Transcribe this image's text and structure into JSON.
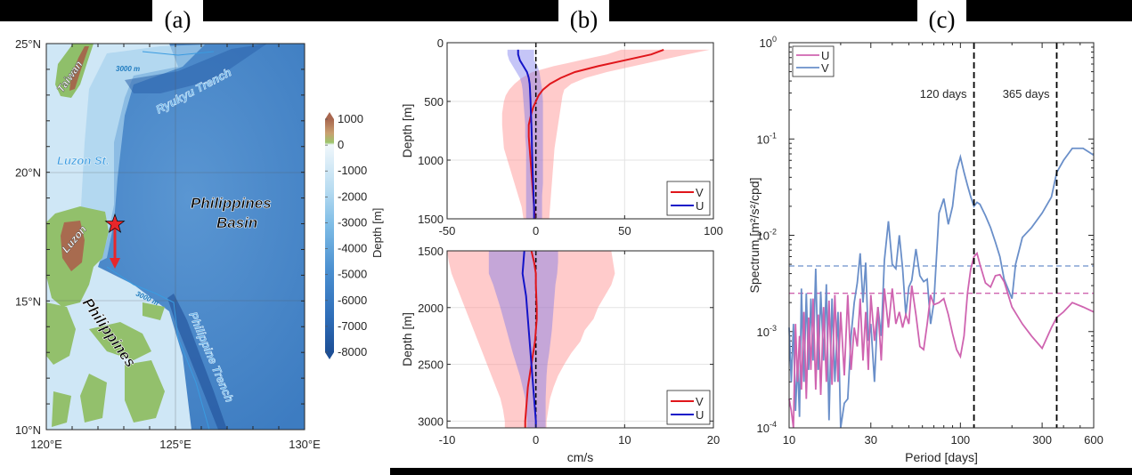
{
  "panels": {
    "a": {
      "title": "(a)"
    },
    "b": {
      "title": "(b)"
    },
    "c": {
      "title": "(c)"
    }
  },
  "chart_data": [
    {
      "panel": "(a)",
      "type": "heatmap",
      "title": "",
      "description": "Bathymetry/topography map of the western Pacific off the Philippines with mooring site (star) and arrow",
      "x_ticks": [
        "120°E",
        "125°E",
        "130°E"
      ],
      "y_ticks": [
        "25°N",
        "20°N",
        "15°N",
        "10°N"
      ],
      "xlim": [
        120,
        130
      ],
      "ylim": [
        10,
        25
      ],
      "colorbar": {
        "label": "Depth [m]",
        "ticks": [
          "1000",
          "0",
          "-1000",
          "-2000",
          "-3000",
          "-4000",
          "-5000",
          "-6000",
          "-7000",
          "-8000"
        ],
        "range": [
          -8000,
          1000
        ]
      },
      "annotations": [
        {
          "text": "Taiwan",
          "lon": 120.9,
          "lat": 23.8
        },
        {
          "text": "3000 m",
          "lon": 122.2,
          "lat": 24.5
        },
        {
          "text": "Ryukyu Trench",
          "lon": 126.2,
          "lat": 23.6
        },
        {
          "text": "Luzon St.",
          "lon": 121.1,
          "lat": 20.4
        },
        {
          "text": "Philippines Basin",
          "lon": 127.3,
          "lat": 17.9
        },
        {
          "text": "Luzon",
          "lon": 121.5,
          "lat": 17.6
        },
        {
          "text": "3000 m",
          "lon": 124.0,
          "lat": 15.3
        },
        {
          "text": "Philippines",
          "lon": 122.5,
          "lat": 13.5
        },
        {
          "text": "Philippine Trench",
          "lon": 127.0,
          "lat": 12.3
        }
      ],
      "mooring": {
        "lon": 122.75,
        "lat": 18.1,
        "marker": "red star"
      },
      "arrow": {
        "lon": 122.75,
        "lat_from": 18.1,
        "lat_to": 16.1,
        "color": "#e8262a"
      }
    },
    {
      "panel": "(b) upper",
      "type": "line",
      "xlabel": "",
      "ylabel": "Depth [m]",
      "xlim": [
        -50,
        100
      ],
      "ylim": [
        1500,
        0
      ],
      "x_ticks": [
        "-50",
        "0",
        "50",
        "100"
      ],
      "y_ticks": [
        "0",
        "500",
        "1000",
        "1500"
      ],
      "grid": true,
      "legend": {
        "position": "bottom-right",
        "entries": [
          "V",
          "U"
        ]
      },
      "series": [
        {
          "name": "V",
          "color": "#e0161b",
          "depth": [
            60,
            100,
            150,
            200,
            250,
            300,
            350,
            400,
            450,
            500,
            550,
            600,
            700,
            800,
            900,
            1000,
            1100,
            1200,
            1300,
            1400,
            1500
          ],
          "mean": [
            72,
            65,
            50,
            35,
            22,
            14,
            8,
            4,
            1.5,
            0,
            -1.5,
            -2.5,
            -4,
            -4,
            -3.5,
            -3,
            -2.5,
            -2,
            -1.5,
            -1,
            -0.5
          ],
          "lower": [
            48,
            40,
            25,
            10,
            -2,
            -8,
            -12,
            -15,
            -17,
            -18,
            -18.5,
            -19,
            -19,
            -18.5,
            -18,
            -16,
            -14,
            -12,
            -10,
            -8,
            -7
          ],
          "upper": [
            98,
            85,
            70,
            55,
            40,
            28,
            20,
            16,
            15,
            14.5,
            14,
            13.5,
            12.5,
            11.5,
            10.5,
            10,
            9.5,
            9,
            8.5,
            8,
            7.5
          ]
        },
        {
          "name": "U",
          "color": "#1414c8",
          "depth": [
            60,
            100,
            150,
            200,
            250,
            300,
            350,
            400,
            500,
            600,
            700,
            800,
            900,
            1000,
            1100,
            1200,
            1300,
            1400,
            1500
          ],
          "mean": [
            -10,
            -10,
            -9,
            -7,
            -5,
            -4,
            -3.5,
            -3.3,
            -3,
            -2.8,
            -2.5,
            -2.3,
            -2.2,
            -2,
            -1.8,
            -1.5,
            -1.3,
            -1,
            -1
          ],
          "lower": [
            -16,
            -16,
            -15,
            -13,
            -11,
            -9,
            -8,
            -7.5,
            -7,
            -6.5,
            -6,
            -6,
            -5.5,
            -5.5,
            -5.5,
            -5.5,
            -5.5,
            -5.5,
            -5.5
          ],
          "upper": [
            -1,
            -1,
            -1,
            1,
            2,
            2.5,
            3,
            3.5,
            4,
            4,
            4,
            4,
            4,
            4,
            4,
            4,
            3.5,
            3.5,
            3.5
          ]
        }
      ],
      "reference_line": {
        "x": 0,
        "style": "dashed",
        "color": "#000000"
      }
    },
    {
      "panel": "(b) lower",
      "type": "line",
      "xlabel": "cm/s",
      "ylabel": "Depth [m]",
      "xlim": [
        -10,
        20
      ],
      "ylim": [
        3060,
        1500
      ],
      "x_ticks": [
        "-10",
        "0",
        "10",
        "20"
      ],
      "y_ticks": [
        "1500",
        "2000",
        "2500",
        "3000"
      ],
      "grid": true,
      "legend": {
        "position": "bottom-right",
        "entries": [
          "V",
          "U"
        ]
      },
      "series": [
        {
          "name": "V",
          "color": "#e0161b",
          "depth": [
            1500,
            1600,
            1700,
            1800,
            2000,
            2100,
            2200,
            2300,
            2400,
            2500,
            2600,
            2700,
            2800,
            2900,
            3000,
            3060
          ],
          "mean": [
            -0.5,
            -0.2,
            0,
            0,
            0.1,
            0.1,
            0,
            -0.1,
            -0.3,
            -0.5,
            -0.7,
            -0.9,
            -1.0,
            -1.1,
            -1.2,
            -1.2
          ],
          "lower": [
            -10,
            -9.8,
            -9.5,
            -9,
            -8,
            -7.5,
            -7,
            -6.5,
            -6,
            -5.5,
            -5,
            -4.5,
            -4,
            -3.7,
            -3.5,
            -3.5
          ],
          "upper": [
            8.5,
            8.7,
            8.9,
            8.5,
            7,
            6.5,
            5.5,
            5,
            4,
            3.2,
            2.5,
            2,
            1.6,
            1.4,
            1.2,
            1.2
          ]
        },
        {
          "name": "U",
          "color": "#1414c8",
          "depth": [
            1500,
            1600,
            1700,
            1800,
            1900,
            2000,
            2200,
            2400,
            2500,
            2600,
            2800,
            3000,
            3060
          ],
          "mean": [
            -1.3,
            -1.4,
            -1.5,
            -1.3,
            -1.1,
            -1.0,
            -0.8,
            -0.6,
            -0.5,
            -0.4,
            -0.2,
            0,
            0
          ],
          "lower": [
            -5.3,
            -5.3,
            -5.3,
            -4.8,
            -4.4,
            -4,
            -3.3,
            -2.6,
            -2.2,
            -1.8,
            -1.2,
            -1,
            -1
          ],
          "upper": [
            2.5,
            2.5,
            2.4,
            2.2,
            2.1,
            2,
            1.8,
            1.5,
            1.3,
            1.2,
            1.1,
            1.1,
            1.1
          ]
        }
      ],
      "reference_line": {
        "x": 0,
        "style": "dashed",
        "color": "#000000"
      }
    },
    {
      "panel": "(c)",
      "type": "line",
      "xlabel": "Period [days]",
      "ylabel": "Spectrum [m²/s²/cpd]",
      "x_scale": "log",
      "y_scale": "log",
      "xlim": [
        10,
        600
      ],
      "ylim": [
        0.0001,
        1
      ],
      "x_ticks": [
        "10",
        "30",
        "100",
        "300",
        "600"
      ],
      "y_ticks": [
        "10^0",
        "10^-1",
        "10^-2",
        "10^-3",
        "10^-4"
      ],
      "legend": {
        "position": "top-left",
        "entries": [
          "U",
          "V"
        ]
      },
      "annotations": [
        {
          "text": "120 days",
          "x": 120
        },
        {
          "text": "365 days",
          "x": 365
        }
      ],
      "vlines": [
        120,
        365
      ],
      "hlines": [
        {
          "series": "V",
          "value": 0.0048,
          "style": "dashed"
        },
        {
          "series": "U",
          "value": 0.0025,
          "style": "dashed"
        }
      ],
      "series": [
        {
          "name": "U",
          "color": "#cf64b0",
          "x": [
            10,
            10.3,
            10.6,
            10.9,
            11.2,
            11.5,
            11.8,
            12.2,
            12.6,
            13,
            13.4,
            13.8,
            14.3,
            14.8,
            15.3,
            15.9,
            16.5,
            17.1,
            17.8,
            18.5,
            19.3,
            20,
            21,
            22,
            23,
            24,
            25,
            26,
            27,
            28,
            29,
            30,
            31.5,
            33,
            34.5,
            36,
            38,
            40,
            42,
            44,
            46,
            48,
            50,
            52,
            55,
            58,
            61,
            64,
            67,
            70,
            75,
            80,
            85,
            90,
            95,
            100,
            105,
            110,
            115,
            120,
            125,
            130,
            140,
            150,
            160,
            170,
            180,
            200,
            230,
            260,
            300,
            340,
            365,
            400,
            450,
            520,
            600
          ],
          "y": [
            0.0002,
            0.00015,
            0.0001,
            0.0012,
            0.0003,
            0.0009,
            0.00025,
            0.0016,
            0.0002,
            0.0014,
            0.0004,
            0.0022,
            0.00025,
            0.0015,
            0.00022,
            0.0018,
            0.0003,
            0.0021,
            0.00028,
            0.0024,
            0.0003,
            0.0016,
            0.00035,
            0.0024,
            0.0004,
            0.0011,
            0.0007,
            0.0022,
            0.0005,
            0.0016,
            0.0004,
            0.0024,
            0.0008,
            0.0018,
            0.0005,
            0.0028,
            0.0011,
            0.0028,
            0.0012,
            0.0016,
            0.0011,
            0.0015,
            0.0012,
            0.003,
            0.0015,
            0.0007,
            0.00065,
            0.0012,
            0.0024,
            0.0019,
            0.002,
            0.0022,
            0.0015,
            0.00095,
            0.00065,
            0.00055,
            0.0009,
            0.0025,
            0.0045,
            0.006,
            0.0065,
            0.005,
            0.0032,
            0.0029,
            0.0038,
            0.0039,
            0.0033,
            0.0018,
            0.0012,
            0.0009,
            0.00067,
            0.0011,
            0.0014,
            0.0016,
            0.002,
            0.0018,
            0.0016
          ]
        },
        {
          "name": "V",
          "color": "#6a8fc9",
          "x": [
            10,
            10.3,
            10.6,
            10.9,
            11.2,
            11.5,
            11.8,
            12.2,
            12.6,
            13,
            13.4,
            13.8,
            14.3,
            14.8,
            15.3,
            15.9,
            16.5,
            17.1,
            17.8,
            18.5,
            19.3,
            20,
            21,
            22,
            23,
            24,
            25,
            26,
            27,
            28,
            29,
            30,
            31.5,
            33,
            34.5,
            36,
            38,
            40,
            42,
            44,
            46,
            48,
            50,
            52,
            55,
            58,
            61,
            64,
            67,
            70,
            75,
            80,
            85,
            90,
            95,
            100,
            105,
            110,
            115,
            120,
            125,
            130,
            140,
            150,
            160,
            170,
            180,
            200,
            210,
            230,
            260,
            300,
            340,
            365,
            400,
            450,
            520,
            600
          ],
          "y": [
            0.0011,
            0.0003,
            0.0012,
            0.00015,
            0.0005,
            0.00013,
            0.0028,
            0.0003,
            0.0025,
            0.0004,
            0.0022,
            0.0005,
            0.0045,
            0.0004,
            0.0026,
            0.0005,
            0.0031,
            0.00012,
            0.0022,
            0.0003,
            0.0016,
            0.0001,
            0.00018,
            0.0002,
            0.0009,
            0.002,
            0.0032,
            0.0065,
            0.002,
            0.0052,
            0.0008,
            0.0012,
            0.0003,
            0.0018,
            0.0009,
            0.0055,
            0.014,
            0.005,
            0.0045,
            0.01,
            0.0045,
            0.0015,
            0.0029,
            0.0034,
            0.0072,
            0.0038,
            0.0033,
            0.0035,
            0.0012,
            0.002,
            0.017,
            0.024,
            0.013,
            0.02,
            0.047,
            0.065,
            0.045,
            0.033,
            0.025,
            0.02,
            0.022,
            0.021,
            0.016,
            0.012,
            0.0085,
            0.006,
            0.0035,
            0.0022,
            0.005,
            0.0095,
            0.012,
            0.017,
            0.025,
            0.045,
            0.06,
            0.08,
            0.08,
            0.068
          ]
        }
      ]
    }
  ]
}
